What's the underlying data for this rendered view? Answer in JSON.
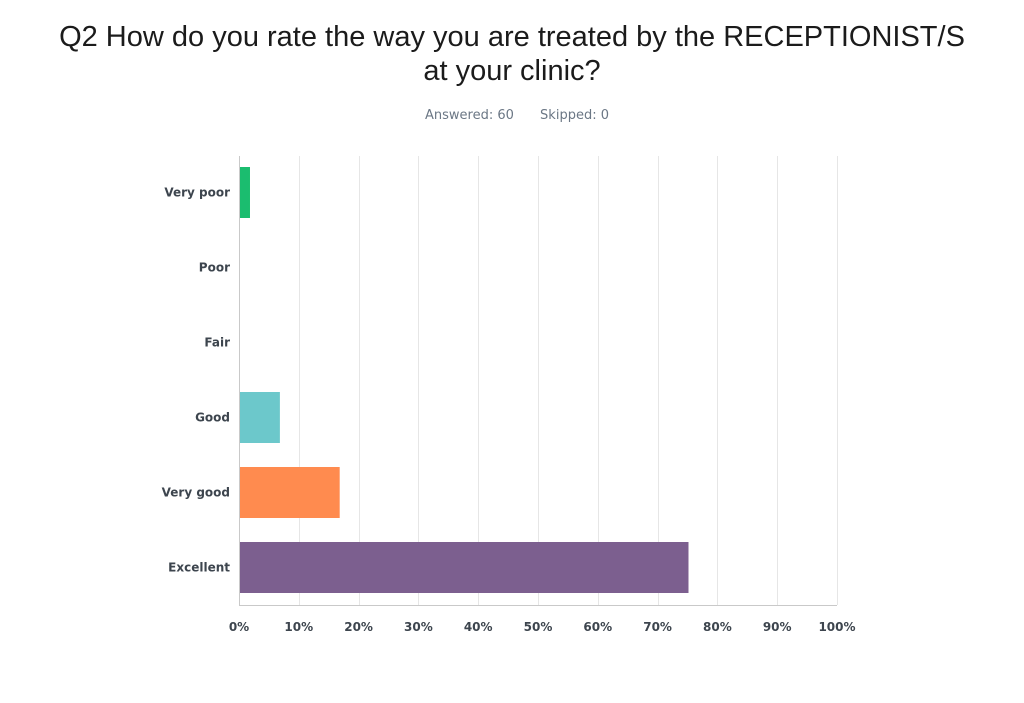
{
  "question": {
    "title_line1": "Q2 How do you rate the way you are treated by the RECEPTIONIST/S",
    "title_line2": "at your clinic?",
    "answered": "Answered: 60",
    "skipped": "Skipped: 0"
  },
  "chart_data": {
    "type": "bar",
    "orientation": "horizontal",
    "title": "Q2 How do you rate the way you are treated by the RECEPTIONIST/S at your clinic?",
    "categories": [
      "Very poor",
      "Poor",
      "Fair",
      "Good",
      "Very good",
      "Excellent"
    ],
    "values": [
      1.67,
      0,
      0,
      6.67,
      16.67,
      75.0
    ],
    "colors": [
      "#1bbd6f",
      "#3f6fb5",
      "#e9c740",
      "#6cc8cb",
      "#ff8b4f",
      "#7c5f8f"
    ],
    "x_ticks": [
      "0%",
      "10%",
      "20%",
      "30%",
      "40%",
      "50%",
      "60%",
      "70%",
      "80%",
      "90%",
      "100%"
    ],
    "xlim": [
      0,
      100
    ],
    "grid": true,
    "legend": "none"
  }
}
